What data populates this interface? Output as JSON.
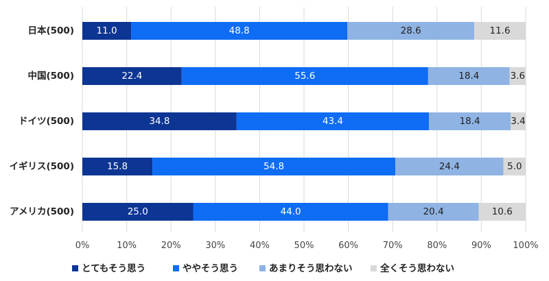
{
  "chart_data": {
    "type": "bar",
    "orientation": "horizontal",
    "stacked": true,
    "categories": [
      "日本(500)",
      "中国(500)",
      "ドイツ(500)",
      "イギリス(500)",
      "アメリカ(500)"
    ],
    "series": [
      {
        "name": "とてもそう思う",
        "color": "#0d3593",
        "label_color": "#ffffff",
        "values": [
          11.0,
          22.4,
          34.8,
          15.8,
          25.0
        ]
      },
      {
        "name": "ややそう思う",
        "color": "#0f6cf5",
        "label_color": "#ffffff",
        "values": [
          48.8,
          55.6,
          43.4,
          54.8,
          44.0
        ]
      },
      {
        "name": "あまりそう思わない",
        "color": "#8fb3e3",
        "label_color": "#222222",
        "values": [
          28.6,
          18.4,
          18.4,
          24.4,
          20.4
        ]
      },
      {
        "name": "全くそう思わない",
        "color": "#d9d9d9",
        "label_color": "#222222",
        "values": [
          11.6,
          3.6,
          3.4,
          5.0,
          10.6
        ]
      }
    ],
    "x_ticks": [
      "0%",
      "10%",
      "20%",
      "30%",
      "40%",
      "50%",
      "60%",
      "70%",
      "80%",
      "90%",
      "100%"
    ],
    "xlim": [
      0,
      100
    ],
    "grid": true,
    "legend_position": "bottom",
    "title": "",
    "xlabel": "",
    "ylabel": ""
  }
}
